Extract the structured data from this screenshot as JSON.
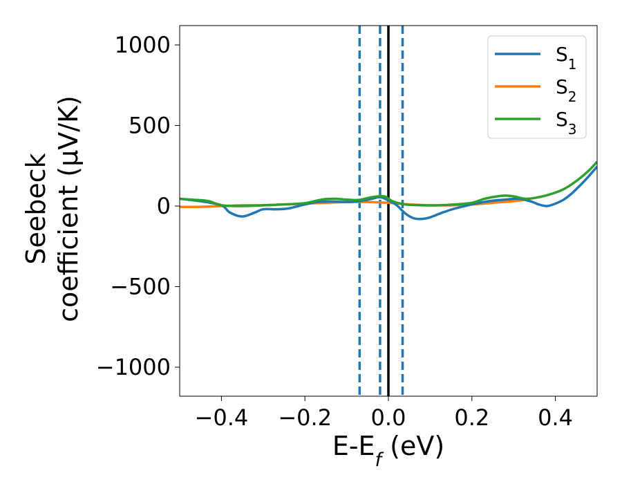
{
  "chart_data": {
    "type": "line",
    "xlabel": "E-E",
    "xlabel_sub": "f",
    "xlabel_unit": " (eV)",
    "ylabel_line1": "Seebeck",
    "ylabel_line2": "coefficient  (μV/K)",
    "xlim": [
      -0.5,
      0.5
    ],
    "ylim": [
      -1180,
      1120
    ],
    "xticks": [
      -0.4,
      -0.2,
      0.0,
      0.2,
      0.4
    ],
    "xtick_labels": [
      "−0.4",
      "−0.2",
      "0.0",
      "0.2",
      "0.4"
    ],
    "yticks": [
      -1000,
      -500,
      0,
      500,
      1000
    ],
    "ytick_labels": [
      "−1000",
      "−500",
      "0",
      "500",
      "1000"
    ],
    "grid": false,
    "legend_position": "top-right",
    "series": [
      {
        "name": "S",
        "name_sub": "1",
        "color": "#1f77b4",
        "x": [
          -0.5,
          -0.45,
          -0.4,
          -0.38,
          -0.35,
          -0.32,
          -0.3,
          -0.27,
          -0.24,
          -0.2,
          -0.17,
          -0.14,
          -0.1,
          -0.07,
          -0.04,
          -0.02,
          0.0,
          0.02,
          0.04,
          0.06,
          0.08,
          0.1,
          0.13,
          0.16,
          0.2,
          0.24,
          0.28,
          0.31,
          0.34,
          0.36,
          0.38,
          0.4,
          0.42,
          0.44,
          0.46,
          0.48,
          0.5
        ],
        "y": [
          45,
          30,
          5,
          -40,
          -65,
          -40,
          -20,
          -20,
          -15,
          10,
          25,
          28,
          25,
          30,
          45,
          55,
          35,
          5,
          -45,
          -75,
          -80,
          -70,
          -40,
          -15,
          10,
          30,
          40,
          45,
          30,
          10,
          0,
          15,
          40,
          80,
          130,
          185,
          245
        ]
      },
      {
        "name": "S",
        "name_sub": "2",
        "color": "#ff7f0e",
        "x": [
          -0.5,
          -0.45,
          -0.4,
          -0.35,
          -0.3,
          -0.25,
          -0.2,
          -0.15,
          -0.1,
          -0.05,
          0.0,
          0.05,
          0.1,
          0.15,
          0.2,
          0.25,
          0.3,
          0.33
        ],
        "y": [
          -5,
          -5,
          0,
          5,
          5,
          10,
          15,
          20,
          25,
          25,
          20,
          10,
          5,
          5,
          10,
          20,
          30,
          40
        ]
      },
      {
        "name": "S",
        "name_sub": "3",
        "color": "#2ca02c",
        "x": [
          -0.5,
          -0.46,
          -0.43,
          -0.4,
          -0.35,
          -0.3,
          -0.25,
          -0.2,
          -0.16,
          -0.13,
          -0.1,
          -0.07,
          -0.04,
          -0.01,
          0.01,
          0.04,
          0.08,
          0.12,
          0.16,
          0.2,
          0.23,
          0.26,
          0.28,
          0.3,
          0.33,
          0.36,
          0.39,
          0.42,
          0.45,
          0.48,
          0.5
        ],
        "y": [
          45,
          38,
          30,
          5,
          0,
          5,
          10,
          18,
          40,
          45,
          40,
          38,
          55,
          60,
          30,
          10,
          5,
          5,
          10,
          20,
          45,
          60,
          65,
          60,
          45,
          55,
          75,
          105,
          155,
          220,
          275
        ]
      }
    ],
    "vlines": [
      {
        "x": -0.069,
        "color": "#1f77b4",
        "style": "dashed"
      },
      {
        "x": -0.02,
        "color": "#1f77b4",
        "style": "dashed"
      },
      {
        "x": 0.0,
        "color": "#000000",
        "style": "solid"
      },
      {
        "x": 0.034,
        "color": "#1f77b4",
        "style": "dashed"
      }
    ]
  }
}
